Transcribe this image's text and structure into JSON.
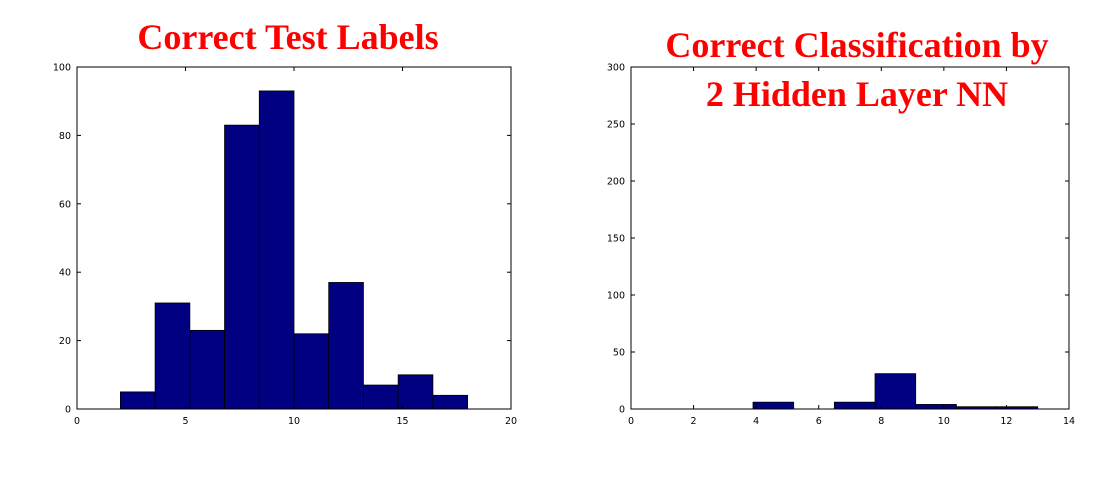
{
  "chart_data": [
    {
      "type": "bar",
      "title": "Correct Test Labels",
      "title_lines": [
        "Correct Test Labels"
      ],
      "xlabel": "",
      "ylabel": "",
      "xlim": [
        0,
        20
      ],
      "ylim": [
        0,
        100
      ],
      "xticks": [
        0,
        5,
        10,
        15,
        20
      ],
      "yticks": [
        0,
        20,
        40,
        60,
        80,
        100
      ],
      "grid": false,
      "bar_color": "#000080",
      "bins": [
        {
          "x0": 2.0,
          "x1": 3.6,
          "value": 5
        },
        {
          "x0": 3.6,
          "x1": 5.2,
          "value": 31
        },
        {
          "x0": 5.2,
          "x1": 6.8,
          "value": 23
        },
        {
          "x0": 6.8,
          "x1": 8.4,
          "value": 83
        },
        {
          "x0": 8.4,
          "x1": 10.0,
          "value": 93
        },
        {
          "x0": 10.0,
          "x1": 11.6,
          "value": 22
        },
        {
          "x0": 11.6,
          "x1": 13.2,
          "value": 37
        },
        {
          "x0": 13.2,
          "x1": 14.8,
          "value": 7
        },
        {
          "x0": 14.8,
          "x1": 16.4,
          "value": 10
        },
        {
          "x0": 16.4,
          "x1": 18.0,
          "value": 4
        }
      ]
    },
    {
      "type": "bar",
      "title": "Correct Classification by 2 Hidden Layer NN",
      "title_lines": [
        "Correct Classification by",
        "2 Hidden Layer NN"
      ],
      "xlabel": "",
      "ylabel": "",
      "xlim": [
        0,
        14
      ],
      "ylim": [
        0,
        300
      ],
      "xticks": [
        0,
        2,
        4,
        6,
        8,
        10,
        12,
        14
      ],
      "yticks": [
        0,
        50,
        100,
        150,
        200,
        250,
        300
      ],
      "grid": false,
      "bar_color": "#000080",
      "bins": [
        {
          "x0": 0.0,
          "x1": 1.3,
          "value": 0
        },
        {
          "x0": 1.3,
          "x1": 2.6,
          "value": 0
        },
        {
          "x0": 2.6,
          "x1": 3.9,
          "value": 0
        },
        {
          "x0": 3.9,
          "x1": 5.2,
          "value": 6
        },
        {
          "x0": 5.2,
          "x1": 6.5,
          "value": 0
        },
        {
          "x0": 6.5,
          "x1": 7.8,
          "value": 6
        },
        {
          "x0": 7.8,
          "x1": 9.1,
          "value": 31
        },
        {
          "x0": 9.1,
          "x1": 10.4,
          "value": 4
        },
        {
          "x0": 10.4,
          "x1": 11.7,
          "value": 2
        },
        {
          "x0": 11.7,
          "x1": 13.0,
          "value": 2
        }
      ]
    }
  ]
}
